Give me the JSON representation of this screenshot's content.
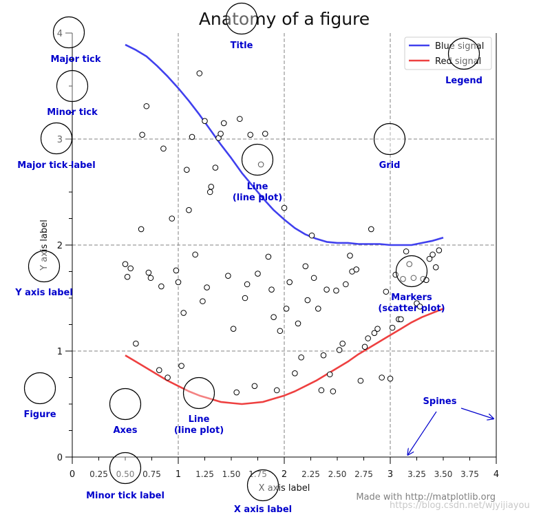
{
  "chart_data": {
    "type": "line",
    "title": "Anatomy of a figure",
    "xlabel": "X axis label",
    "ylabel": "Y axis label",
    "xlim": [
      0,
      4
    ],
    "ylim": [
      0,
      4
    ],
    "major_xticks": [
      0,
      1,
      2,
      3,
      4
    ],
    "major_yticks": [
      0,
      1,
      2,
      3,
      4
    ],
    "minor_xticks": [
      0.25,
      0.5,
      0.75,
      1.25,
      1.5,
      1.75,
      2.25,
      2.5,
      2.75,
      3.25,
      3.5,
      3.75
    ],
    "minor_yticks": [
      0.25,
      0.5,
      0.75,
      1.25,
      1.5,
      1.75,
      2.25,
      2.5,
      2.75,
      3.25,
      3.5,
      3.75
    ],
    "minor_xtick_labels": [
      "0.25",
      "0.50",
      "0.75",
      "1.25",
      "1.50",
      "1.75",
      "2.25",
      "2.50",
      "2.75",
      "3.25",
      "3.50",
      "3.75"
    ],
    "grid": true,
    "legend_position": "top-right",
    "series": [
      {
        "name": "Blue signal",
        "color": "#4040ee",
        "x": [
          0.5,
          0.6,
          0.7,
          0.8,
          0.9,
          1.0,
          1.1,
          1.2,
          1.3,
          1.4,
          1.5,
          1.6,
          1.7,
          1.8,
          1.9,
          2.0,
          2.1,
          2.2,
          2.3,
          2.4,
          2.5,
          2.6,
          2.7,
          2.8,
          2.9,
          3.0,
          3.1,
          3.2,
          3.3,
          3.4,
          3.5
        ],
        "y": [
          3.89,
          3.84,
          3.78,
          3.69,
          3.59,
          3.48,
          3.36,
          3.23,
          3.09,
          2.95,
          2.82,
          2.68,
          2.56,
          2.44,
          2.33,
          2.24,
          2.16,
          2.1,
          2.06,
          2.03,
          2.02,
          2.02,
          2.01,
          2.01,
          2.01,
          2.0,
          2.0,
          2.0,
          2.02,
          2.04,
          2.07
        ]
      },
      {
        "name": "Red signal",
        "color": "#ee4040",
        "x": [
          0.5,
          0.6,
          0.7,
          0.8,
          0.9,
          1.0,
          1.1,
          1.2,
          1.3,
          1.4,
          1.5,
          1.6,
          1.7,
          1.8,
          1.9,
          2.0,
          2.1,
          2.2,
          2.3,
          2.4,
          2.5,
          2.6,
          2.7,
          2.8,
          2.9,
          3.0,
          3.1,
          3.2,
          3.3,
          3.4,
          3.5
        ],
        "y": [
          0.96,
          0.9,
          0.84,
          0.78,
          0.72,
          0.67,
          0.62,
          0.58,
          0.55,
          0.52,
          0.51,
          0.5,
          0.51,
          0.52,
          0.55,
          0.58,
          0.62,
          0.67,
          0.72,
          0.78,
          0.84,
          0.9,
          0.97,
          1.03,
          1.09,
          1.15,
          1.21,
          1.27,
          1.32,
          1.36,
          1.4
        ]
      }
    ],
    "scatter": {
      "x": [
        0.5,
        0.52,
        0.55,
        0.6,
        0.65,
        0.66,
        0.7,
        0.72,
        0.74,
        0.82,
        0.84,
        0.86,
        0.9,
        0.94,
        0.98,
        1.0,
        1.03,
        1.05,
        1.08,
        1.1,
        1.13,
        1.16,
        1.2,
        1.23,
        1.25,
        1.27,
        1.3,
        1.31,
        1.35,
        1.38,
        1.4,
        1.43,
        1.47,
        1.52,
        1.55,
        1.58,
        1.63,
        1.65,
        1.68,
        1.72,
        1.75,
        1.78,
        1.82,
        1.85,
        1.88,
        1.9,
        1.93,
        1.96,
        2.0,
        2.02,
        2.05,
        2.1,
        2.13,
        2.16,
        2.2,
        2.22,
        2.26,
        2.28,
        2.32,
        2.35,
        2.37,
        2.4,
        2.43,
        2.46,
        2.49,
        2.52,
        2.55,
        2.58,
        2.62,
        2.64,
        2.68,
        2.72,
        2.76,
        2.79,
        2.82,
        2.85,
        2.88,
        2.92,
        2.96,
        3.0,
        3.02,
        3.05,
        3.08,
        3.1,
        3.12,
        3.15,
        3.18,
        3.22,
        3.25,
        3.28,
        3.31,
        3.34,
        3.37,
        3.4,
        3.43,
        3.46
      ],
      "y": [
        1.82,
        1.7,
        1.78,
        1.07,
        2.15,
        3.04,
        3.31,
        1.74,
        1.69,
        0.82,
        1.61,
        2.91,
        0.75,
        2.25,
        1.76,
        1.65,
        0.86,
        1.36,
        2.71,
        2.33,
        3.02,
        1.91,
        3.62,
        1.47,
        3.17,
        1.6,
        2.5,
        2.55,
        2.73,
        3.01,
        3.05,
        3.15,
        1.71,
        1.21,
        0.61,
        3.19,
        1.5,
        1.63,
        3.04,
        0.67,
        1.73,
        2.76,
        3.05,
        1.89,
        1.58,
        1.32,
        0.63,
        1.19,
        2.35,
        1.4,
        1.65,
        0.79,
        1.26,
        0.94,
        1.8,
        1.48,
        2.09,
        1.69,
        1.4,
        0.63,
        0.96,
        1.58,
        0.78,
        0.62,
        1.57,
        1.01,
        1.07,
        1.63,
        1.9,
        1.75,
        1.77,
        0.72,
        1.04,
        1.12,
        2.15,
        1.17,
        1.21,
        0.75,
        1.56,
        0.74,
        1.22,
        1.72,
        1.3,
        1.3,
        1.68,
        1.94,
        1.82,
        1.69,
        1.45,
        1.42,
        1.68,
        1.67,
        1.87,
        1.91,
        1.79,
        1.95
      ]
    }
  },
  "annotations": [
    {
      "id": "major-tick",
      "text": "Major tick"
    },
    {
      "id": "minor-tick",
      "text": "Minor tick"
    },
    {
      "id": "major-tick-label",
      "text": "Major tick label"
    },
    {
      "id": "y-axis-label",
      "text": "Y axis label"
    },
    {
      "id": "figure",
      "text": "Figure"
    },
    {
      "id": "axes",
      "text": "Axes"
    },
    {
      "id": "line-plot-1",
      "text": "Line\n(line plot)"
    },
    {
      "id": "minor-tick-label",
      "text": "Minor tick label"
    },
    {
      "id": "x-axis-label",
      "text": "X axis label"
    },
    {
      "id": "title",
      "text": "Title"
    },
    {
      "id": "line-plot-2",
      "text": "Line\n(line plot)"
    },
    {
      "id": "grid",
      "text": "Grid"
    },
    {
      "id": "legend",
      "text": "Legend"
    },
    {
      "id": "markers",
      "text": "Markers\n(scatter plot)"
    },
    {
      "id": "spines",
      "text": "Spines"
    }
  ],
  "annotation_color": "#0000cc",
  "credit": "Made with http://matplotlib.org",
  "watermark": "https://blog.csdn.net/wjyijiayou"
}
